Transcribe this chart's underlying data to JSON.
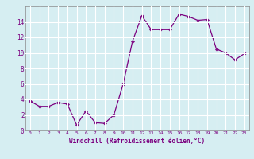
{
  "x_vals": [
    0,
    1,
    2,
    3,
    4,
    5,
    6,
    7,
    8,
    9,
    10,
    11,
    12,
    13,
    14,
    15,
    16,
    17,
    18,
    19,
    20,
    21,
    22,
    23
  ],
  "y_vals": [
    3.8,
    3.1,
    3.1,
    3.6,
    3.4,
    0.7,
    2.5,
    1.0,
    0.9,
    2.0,
    6.0,
    11.5,
    14.8,
    13.0,
    13.0,
    13.0,
    15.0,
    14.7,
    14.2,
    14.3,
    10.5,
    10.0,
    9.1,
    9.9
  ],
  "line_color": "#7b0080",
  "marker_color": "#7b0080",
  "bg_color": "#d6eef2",
  "grid_color": "#b8d8e0",
  "xlabel": "Windchill (Refroidissement éolien,°C)",
  "xlabel_color": "#7b0080",
  "tick_color": "#7b0080",
  "ylim": [
    0,
    16
  ],
  "xlim": [
    -0.5,
    23.5
  ],
  "yticks": [
    0,
    2,
    4,
    6,
    8,
    10,
    12,
    14
  ],
  "xticks": [
    0,
    1,
    2,
    3,
    4,
    5,
    6,
    7,
    8,
    9,
    10,
    11,
    12,
    13,
    14,
    15,
    16,
    17,
    18,
    19,
    20,
    21,
    22,
    23
  ]
}
